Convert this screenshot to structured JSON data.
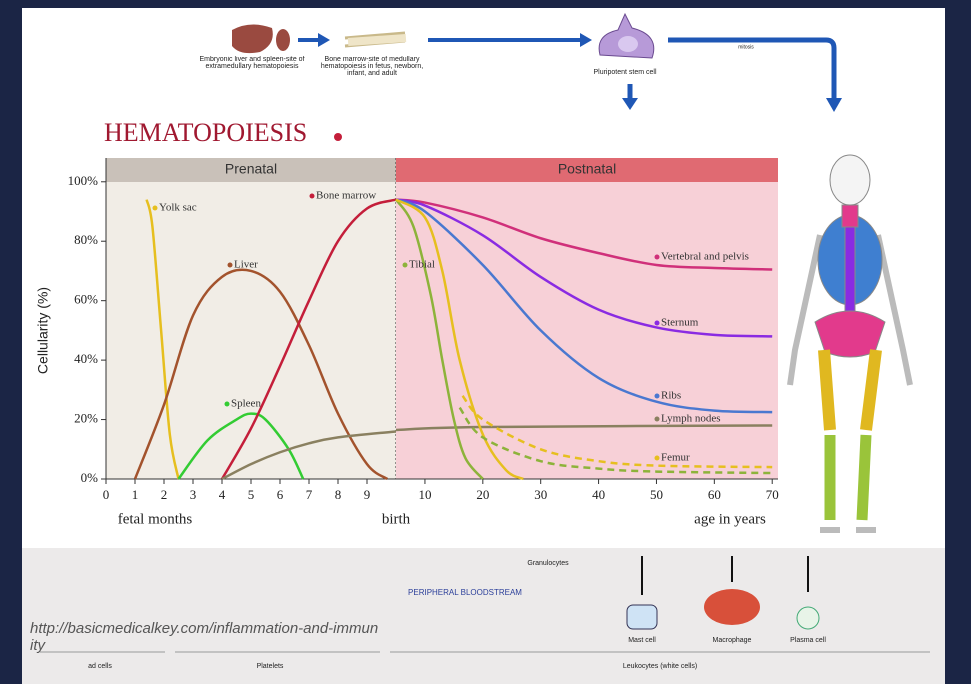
{
  "slide": {
    "title": "HEMATOPOIESIS",
    "liver_caption": "Embryonic liver and spleen-site of extramedullary hematopoiesis",
    "marrow_caption": "Bone marrow-site of medullary hematopoiesis in fetus, newborn, infant, and adult",
    "stem_cell_caption": "Pluripotent stem cell",
    "mitosis_caption": "mitosis",
    "granulocytes": "Granulocytes",
    "bloodstream": "PERIPHERAL BLOODSTREAM",
    "mast_cell": "Mast cell",
    "macrophage": "Macrophage",
    "plasma_cell": "Plasma cell",
    "red_cells": "ad cells",
    "platelets": "Platelets",
    "leukocytes": "Leukocytes (white cells)",
    "url": "http://basicmedicalkey.com/inflammation-and-immunity"
  },
  "chart_data": [
    {
      "type": "line",
      "header": "Prenatal",
      "header_color": "#c9c1b9",
      "background": "#f1ede6",
      "ylabel": "Cellularity (%)",
      "xlabel": "fetal months",
      "boundary_label": "birth",
      "xlim": [
        0,
        10
      ],
      "xticks": [
        0,
        1,
        2,
        3,
        4,
        5,
        6,
        7,
        8,
        9
      ],
      "ylim": [
        0,
        108
      ],
      "yticks": [
        {
          "value": 0,
          "label": "0%"
        },
        {
          "value": 20,
          "label": "20%"
        },
        {
          "value": 40,
          "label": "40%"
        },
        {
          "value": 60,
          "label": "60%"
        },
        {
          "value": 80,
          "label": "80%"
        },
        {
          "value": 100,
          "label": "100%"
        }
      ],
      "series": [
        {
          "name": "Yolk sac",
          "color": "#e6bf1f",
          "x": [
            1.4,
            1.6,
            1.9,
            2.2,
            2.5
          ],
          "values": [
            94,
            85,
            50,
            15,
            0
          ]
        },
        {
          "name": "Liver",
          "color": "#a3532d",
          "x": [
            1,
            2,
            3,
            4,
            5,
            6,
            7,
            8,
            9,
            9.7
          ],
          "values": [
            0,
            25,
            55,
            68,
            70,
            63,
            45,
            22,
            5,
            0
          ]
        },
        {
          "name": "Spleen",
          "color": "#33cc33",
          "x": [
            2.5,
            3.5,
            4.5,
            5,
            5.5,
            6.3,
            6.8
          ],
          "values": [
            0,
            13,
            20,
            22,
            20,
            10,
            0
          ]
        },
        {
          "name": "Bone marrow",
          "color": "#c41e3a",
          "x": [
            4,
            5,
            6,
            7,
            8,
            9,
            10
          ],
          "values": [
            0,
            17,
            38,
            60,
            80,
            91,
            94
          ]
        },
        {
          "color": "#8a8060",
          "x": [
            4,
            5,
            6,
            7,
            8,
            10
          ],
          "values": [
            0,
            5,
            9,
            12,
            14,
            16
          ]
        }
      ]
    },
    {
      "type": "line",
      "header": "Postnatal",
      "header_color": "#e06a72",
      "background": "#f7d0d7",
      "xlabel": "age in years",
      "xlim": [
        5,
        71
      ],
      "xticks": [
        10,
        20,
        30,
        40,
        50,
        60,
        70
      ],
      "ylim": [
        0,
        108
      ],
      "series": [
        {
          "name": "Vertebral and pelvis",
          "color": "#d0307a",
          "x": [
            5,
            10,
            20,
            30,
            40,
            50,
            60,
            70
          ],
          "values": [
            94,
            93,
            88,
            81,
            76,
            72,
            71,
            70.5
          ]
        },
        {
          "name": "Sternum",
          "color": "#8a2be2",
          "x": [
            5,
            10,
            20,
            30,
            40,
            50,
            60,
            70
          ],
          "values": [
            94,
            92,
            82,
            68,
            57,
            51,
            48.5,
            48
          ]
        },
        {
          "name": "Ribs",
          "color": "#4a78d0",
          "x": [
            5,
            10,
            20,
            30,
            40,
            50,
            60,
            70
          ],
          "values": [
            94,
            90,
            72,
            50,
            34,
            26,
            23,
            22.5
          ]
        },
        {
          "name": "Lymph nodes",
          "color": "#8a8060",
          "x": [
            5,
            20,
            70
          ],
          "values": [
            16.5,
            17.5,
            18
          ]
        },
        {
          "name": "Tibial",
          "color": "#8db33a",
          "x": [
            5,
            8,
            11,
            13,
            15,
            17,
            20
          ],
          "values": [
            94,
            85,
            62,
            40,
            20,
            7,
            0
          ]
        },
        {
          "name": "Femur",
          "color": "#e6bf1f",
          "x": [
            5,
            10,
            13,
            16,
            20,
            24,
            27
          ],
          "values": [
            94,
            88,
            70,
            40,
            15,
            3,
            0
          ]
        },
        {
          "color": "#e6bf1f",
          "dash": true,
          "x": [
            16.5,
            20,
            30,
            40,
            50,
            70
          ],
          "values": [
            28,
            20,
            10,
            6,
            4.5,
            4
          ]
        },
        {
          "color": "#8db33a",
          "dash": true,
          "x": [
            16,
            20,
            30,
            40,
            50,
            70
          ],
          "values": [
            24,
            14,
            6,
            3.5,
            2.5,
            2
          ]
        }
      ]
    }
  ]
}
